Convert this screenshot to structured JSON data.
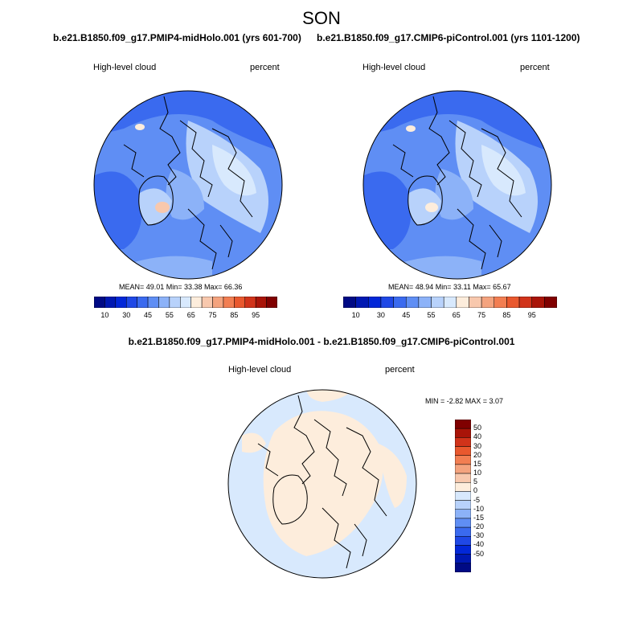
{
  "figure": {
    "title": "SON"
  },
  "panels": [
    {
      "case_title": "b.e21.B1850.f09_g17.PMIP4-midHolo.001 (yrs 601-700)",
      "variable": "High-level cloud",
      "units": "percent",
      "stats": "MEAN=  49.01  Min=  33.38  Max=  66.36"
    },
    {
      "case_title": "b.e21.B1850.f09_g17.CMIP6-piControl.001 (yrs 1101-1200)",
      "variable": "High-level cloud",
      "units": "percent",
      "stats": "MEAN=  48.94  Min=  33.11  Max=  65.67"
    },
    {
      "case_title": "b.e21.B1850.f09_g17.PMIP4-midHolo.001 - b.e21.B1850.f09_g17.CMIP6-piControl.001",
      "variable": "High-level cloud",
      "units": "percent",
      "stats": "MIN =   -2.82 MAX =    3.07"
    }
  ],
  "colorbar_abs": {
    "colors": [
      "#000a85",
      "#0018b2",
      "#0227d8",
      "#1f48e6",
      "#3a6aef",
      "#5f8ef4",
      "#8cb2f8",
      "#b8d2fb",
      "#d8e9fd",
      "#fdeddc",
      "#f8c8ad",
      "#f4a37e",
      "#f27e52",
      "#e9582e",
      "#d1331a",
      "#a91408",
      "#800000"
    ],
    "tick_labels": [
      "10",
      "30",
      "45",
      "55",
      "65",
      "75",
      "85",
      "95"
    ]
  },
  "colorbar_diff": {
    "colors": [
      "#000a85",
      "#0018b2",
      "#0227d8",
      "#1f48e6",
      "#3a6aef",
      "#5f8ef4",
      "#8cb2f8",
      "#b8d2fb",
      "#d8e9fd",
      "#fdeddc",
      "#f8c8ad",
      "#f4a37e",
      "#f27e52",
      "#e9582e",
      "#d1331a",
      "#a91408",
      "#800000"
    ],
    "tick_labels": [
      "-50",
      "-40",
      "-30",
      "-20",
      "-15",
      "-10",
      "-5",
      "0",
      "5",
      "10",
      "15",
      "20",
      "30",
      "40",
      "50"
    ]
  },
  "map_fill_colors": {
    "abs_background": "#5f8ef4",
    "diff_background": "#d8e9fd",
    "diff_positive": "#fdeddc"
  }
}
